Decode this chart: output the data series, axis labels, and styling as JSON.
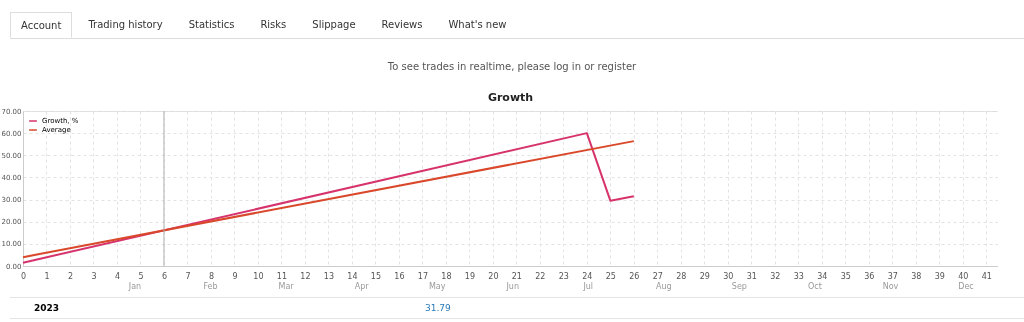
{
  "chart_data": {
    "type": "line",
    "title": "Growth",
    "x": [
      0,
      24,
      25,
      26
    ],
    "series": [
      {
        "name": "Growth, %",
        "color": "#d6336c",
        "values": [
          1.5,
          60,
          29.5,
          31.5
        ]
      },
      {
        "name": "Average",
        "color": "#d9482b",
        "x": [
          0,
          26
        ],
        "values": [
          4,
          56.4
        ]
      }
    ],
    "xlim": [
      0,
      41.5
    ],
    "xticks": [
      0,
      1,
      2,
      3,
      4,
      5,
      6,
      7,
      8,
      9,
      10,
      11,
      12,
      13,
      14,
      15,
      16,
      17,
      18,
      19,
      20,
      21,
      22,
      23,
      24,
      25,
      26,
      27,
      28,
      29,
      30,
      31,
      32,
      33,
      34,
      35,
      36,
      37,
      38,
      39,
      40,
      41
    ],
    "ylim": [
      0,
      70
    ],
    "yticks": [
      {
        "value": 0,
        "label": "0.00"
      },
      {
        "value": 10,
        "label": "10.00"
      },
      {
        "value": 20,
        "label": "20.00"
      },
      {
        "value": 30,
        "label": "30.00"
      },
      {
        "value": 40,
        "label": "40.00"
      },
      {
        "value": 50,
        "label": "50.00"
      },
      {
        "value": 60,
        "label": "60.00"
      },
      {
        "value": 70,
        "label": "70.00"
      }
    ],
    "ref_lines": [
      {
        "axis": "x",
        "value": 6,
        "color": "#b0b0b0"
      }
    ],
    "grid": true,
    "legend": "top left",
    "line_style": "solid",
    "marker": "none",
    "annotations": [
      "Account",
      "Trading history",
      "Statistics",
      "Risks",
      "Slippage",
      "Reviews",
      "What's new",
      "To see trades in realtime, please log in or register",
      "2023",
      "31.79",
      "Jan",
      "Feb",
      "Mar",
      "Apr",
      "May",
      "Jun",
      "Jul",
      "Aug",
      "Sep",
      "Oct",
      "Nov",
      "Dec"
    ]
  }
}
